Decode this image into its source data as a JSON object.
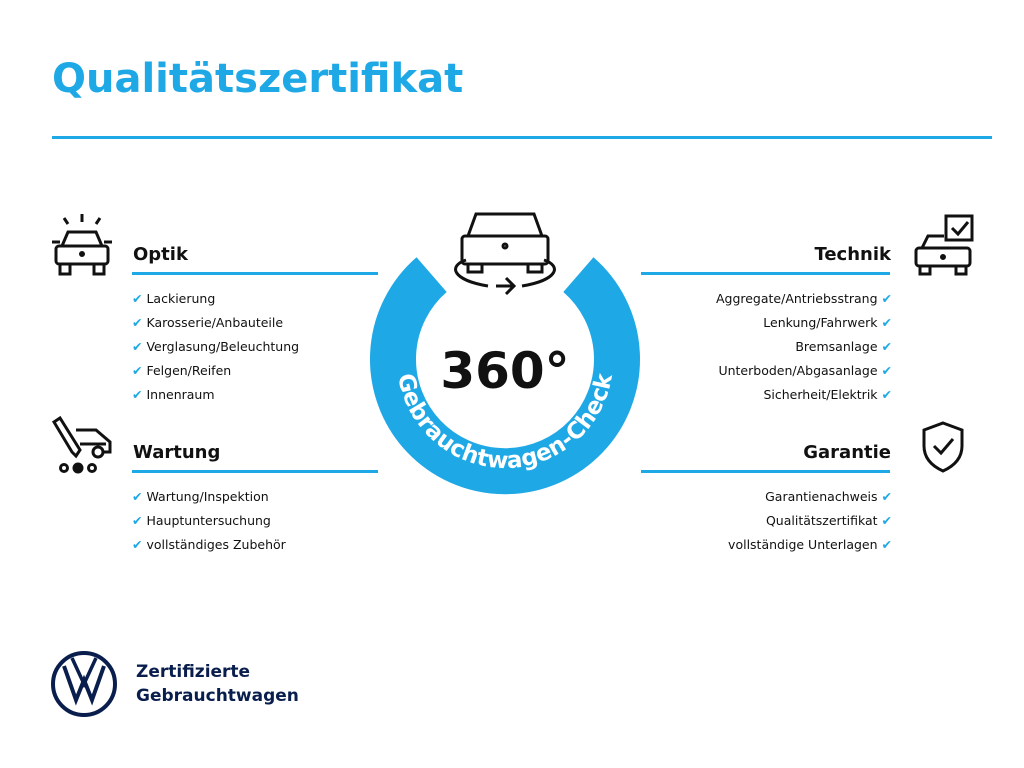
{
  "title": "Qualitätszertifikat",
  "center": {
    "degrees": "360°",
    "ring_text": "Gebrauchtwagen-Check"
  },
  "sections": {
    "optik": {
      "title": "Optik",
      "items": [
        "Lackierung",
        "Karosserie/Anbauteile",
        "Verglasung/Beleuchtung",
        "Felgen/Reifen",
        "Innenraum"
      ]
    },
    "wartung": {
      "title": "Wartung",
      "items": [
        "Wartung/Inspektion",
        "Hauptuntersuchung",
        "vollständiges Zubehör"
      ]
    },
    "technik": {
      "title": "Technik",
      "items": [
        "Aggregate/Antriebsstrang",
        "Lenkung/Fahrwerk",
        "Bremsanlage",
        "Unterboden/Abgasanlage",
        "Sicherheit/Elektrik"
      ]
    },
    "garantie": {
      "title": "Garantie",
      "items": [
        "Garantienachweis",
        "Qualitätszertifikat",
        "vollständige Unterlagen"
      ]
    }
  },
  "brand": {
    "line1": "Zertifizierte",
    "line2": "Gebrauchtwagen",
    "logo_text": "VW"
  },
  "colors": {
    "accent": "#1ea8e6",
    "navy": "#0a1e4d"
  },
  "check_glyph": "✔"
}
